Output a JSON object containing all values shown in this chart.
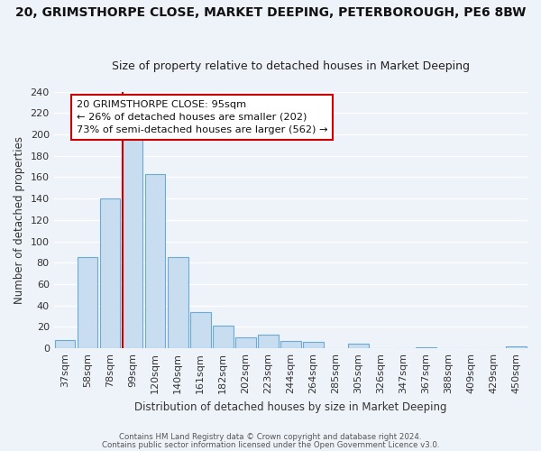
{
  "title": "20, GRIMSTHORPE CLOSE, MARKET DEEPING, PETERBOROUGH, PE6 8BW",
  "subtitle": "Size of property relative to detached houses in Market Deeping",
  "xlabel": "Distribution of detached houses by size in Market Deeping",
  "ylabel": "Number of detached properties",
  "bar_labels": [
    "37sqm",
    "58sqm",
    "78sqm",
    "99sqm",
    "120sqm",
    "140sqm",
    "161sqm",
    "182sqm",
    "202sqm",
    "223sqm",
    "244sqm",
    "264sqm",
    "285sqm",
    "305sqm",
    "326sqm",
    "347sqm",
    "367sqm",
    "388sqm",
    "409sqm",
    "429sqm",
    "450sqm"
  ],
  "bar_heights": [
    8,
    85,
    140,
    199,
    163,
    85,
    34,
    21,
    10,
    13,
    7,
    6,
    0,
    4,
    0,
    0,
    1,
    0,
    0,
    0,
    2
  ],
  "bar_color": "#c9ddf0",
  "bar_edge_color": "#6aaad4",
  "vline_color": "#cc0000",
  "annotation_title": "20 GRIMSTHORPE CLOSE: 95sqm",
  "annotation_line1": "← 26% of detached houses are smaller (202)",
  "annotation_line2": "73% of semi-detached houses are larger (562) →",
  "annotation_box_color": "#ffffff",
  "annotation_box_edge": "#cc0000",
  "footer1": "Contains HM Land Registry data © Crown copyright and database right 2024.",
  "footer2": "Contains public sector information licensed under the Open Government Licence v3.0.",
  "ylim": [
    0,
    240
  ],
  "yticks": [
    0,
    20,
    40,
    60,
    80,
    100,
    120,
    140,
    160,
    180,
    200,
    220,
    240
  ],
  "title_fontsize": 10,
  "subtitle_fontsize": 9,
  "axis_fontsize": 8.5,
  "tick_fontsize": 8,
  "bg_color": "#eef2f9",
  "grid_color": "#ffffff",
  "vline_bar_index": 3
}
